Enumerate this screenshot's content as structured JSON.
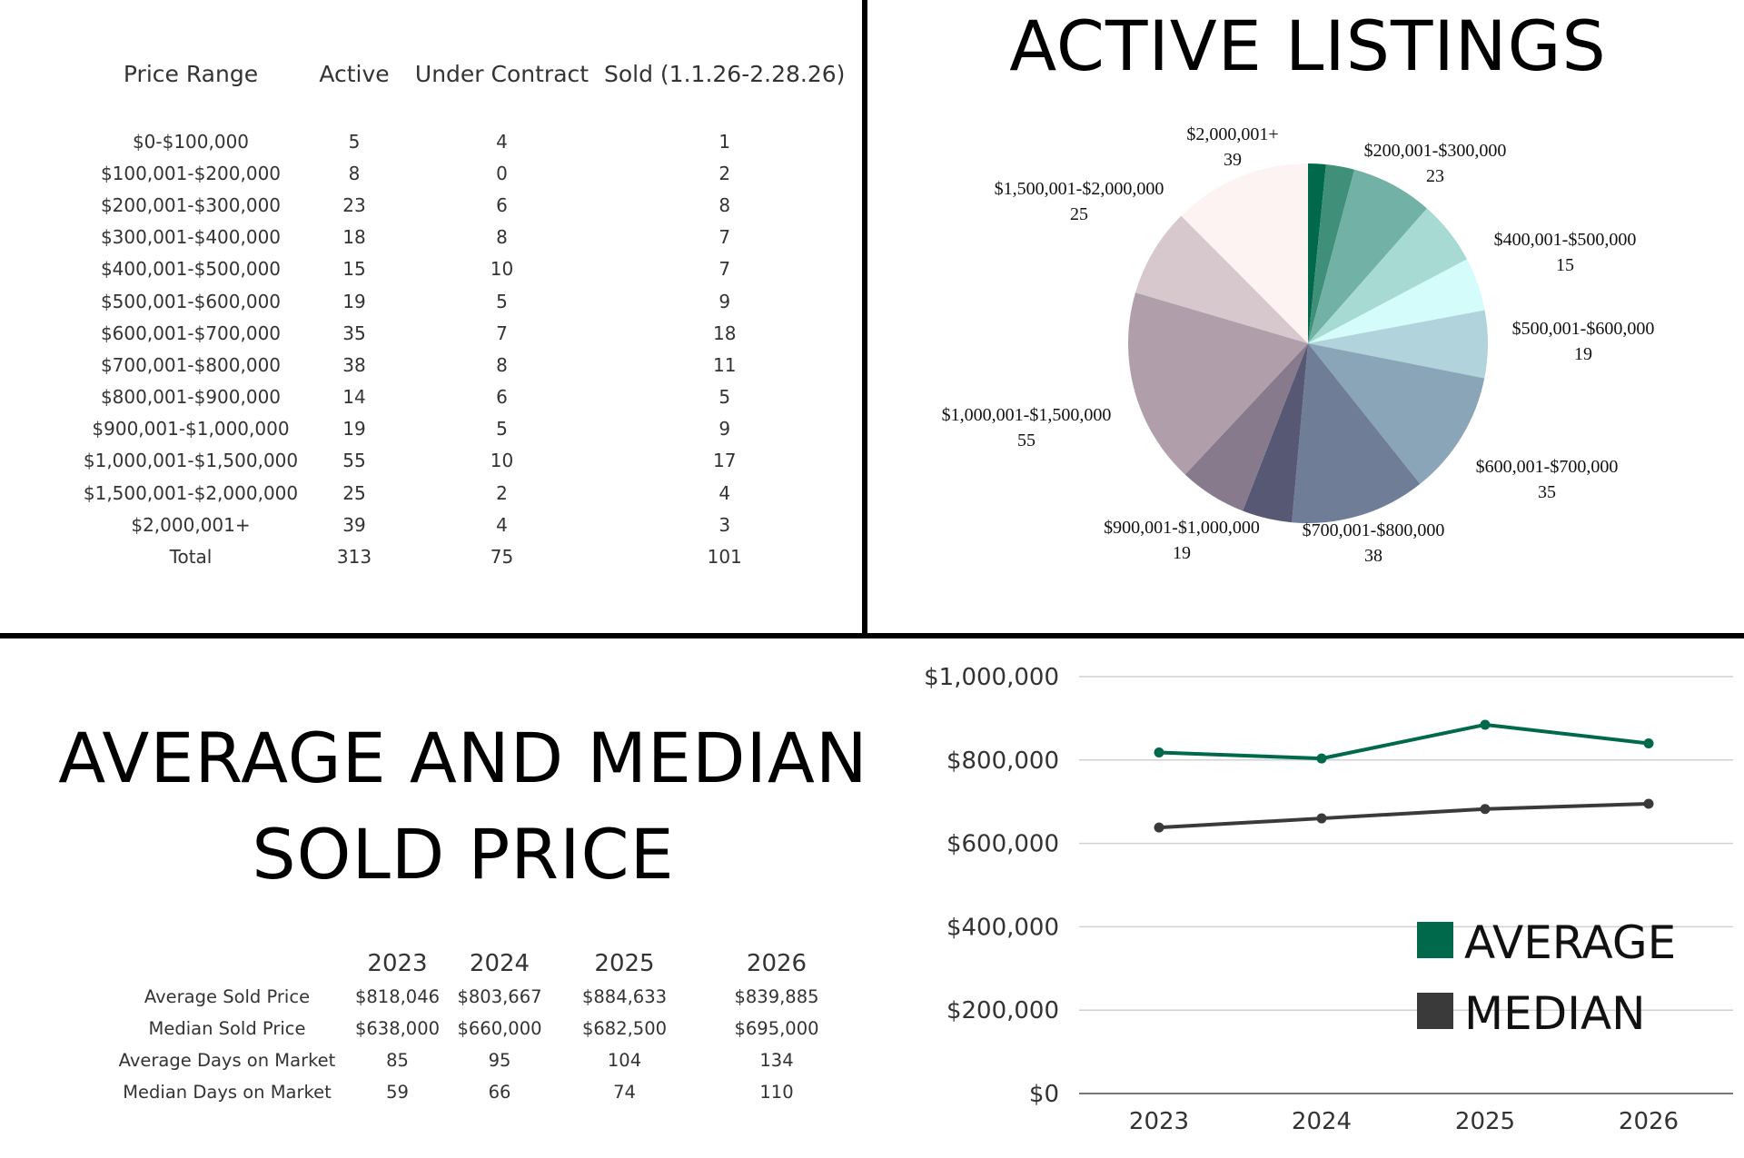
{
  "price_table": {
    "headers": [
      "Price Range",
      "Active",
      "Under Contract",
      "Sold (1.1.26-2.28.26)"
    ],
    "rows": [
      [
        "$0-$100,000",
        "5",
        "4",
        "1"
      ],
      [
        "$100,001-$200,000",
        "8",
        "0",
        "2"
      ],
      [
        "$200,001-$300,000",
        "23",
        "6",
        "8"
      ],
      [
        "$300,001-$400,000",
        "18",
        "8",
        "7"
      ],
      [
        "$400,001-$500,000",
        "15",
        "10",
        "7"
      ],
      [
        "$500,001-$600,000",
        "19",
        "5",
        "9"
      ],
      [
        "$600,001-$700,000",
        "35",
        "7",
        "18"
      ],
      [
        "$700,001-$800,000",
        "38",
        "8",
        "11"
      ],
      [
        "$800,001-$900,000",
        "14",
        "6",
        "5"
      ],
      [
        "$900,001-$1,000,000",
        "19",
        "5",
        "9"
      ],
      [
        "$1,000,001-$1,500,000",
        "55",
        "10",
        "17"
      ],
      [
        "$1,500,001-$2,000,000",
        "25",
        "2",
        "4"
      ],
      [
        "$2,000,001+",
        "39",
        "4",
        "3"
      ],
      [
        "Total",
        "313",
        "75",
        "101"
      ]
    ]
  },
  "stats_table": {
    "headers": [
      "",
      "2023",
      "2024",
      "2025",
      "2026"
    ],
    "rows": [
      [
        "Average Sold Price",
        "$818,046",
        "$803,667",
        "$884,633",
        "$839,885"
      ],
      [
        "Median Sold Price",
        "$638,000",
        "$660,000",
        "$682,500",
        "$695,000"
      ],
      [
        "Average Days on Market",
        "85",
        "95",
        "104",
        "134"
      ],
      [
        "Median Days on Market",
        "59",
        "66",
        "74",
        "110"
      ]
    ]
  },
  "chart_data": [
    {
      "type": "pie",
      "title": "ACTIVE LISTINGS",
      "slices": [
        {
          "label": "$0-$100,000",
          "value": 5,
          "color": "#00694b",
          "show_label": false
        },
        {
          "label": "$100,001-$200,000",
          "value": 8,
          "color": "#3f8f79",
          "show_label": false
        },
        {
          "label": "$200,001-$300,000",
          "value": 23,
          "color": "#72b1a5",
          "show_label": true
        },
        {
          "label": "$300,001-$400,000",
          "value": 18,
          "color": "#a6dad2",
          "show_label": false
        },
        {
          "label": "$400,001-$500,000",
          "value": 15,
          "color": "#d4fcfb",
          "show_label": true
        },
        {
          "label": "$500,001-$600,000",
          "value": 19,
          "color": "#b0d3dc",
          "show_label": true
        },
        {
          "label": "$600,001-$700,000",
          "value": 35,
          "color": "#8ba5b8",
          "show_label": true
        },
        {
          "label": "$700,001-$800,000",
          "value": 38,
          "color": "#6f7d96",
          "show_label": true
        },
        {
          "label": "$800,001-$900,000",
          "value": 14,
          "color": "#575873",
          "show_label": false
        },
        {
          "label": "$900,001-$1,000,000",
          "value": 19,
          "color": "#877a8d",
          "show_label": true
        },
        {
          "label": "$1,000,001-$1,500,000",
          "value": 55,
          "color": "#b09fab",
          "show_label": true
        },
        {
          "label": "$1,500,001-$2,000,000",
          "value": 25,
          "color": "#d7c8cd",
          "show_label": true
        },
        {
          "label": "$2,000,001+",
          "value": 39,
          "color": "#fdf3f3",
          "show_label": true
        }
      ]
    },
    {
      "type": "line",
      "title": "AVERAGE AND MEDIAN SOLD PRICE",
      "x": [
        "2023",
        "2024",
        "2025",
        "2026"
      ],
      "series": [
        {
          "name": "AVERAGE",
          "values": [
            818046,
            803667,
            884633,
            839885
          ],
          "color": "#00694b"
        },
        {
          "name": "MEDIAN",
          "values": [
            638000,
            660000,
            682500,
            695000
          ],
          "color": "#3a3a3a"
        }
      ],
      "ylim": [
        0,
        1000000
      ],
      "yticks": [
        0,
        200000,
        400000,
        600000,
        800000,
        1000000
      ],
      "ytick_labels": [
        "$0",
        "$200,000",
        "$400,000",
        "$600,000",
        "$800,000",
        "$1,000,000"
      ],
      "grid": true,
      "legend": "bottom-right"
    }
  ]
}
